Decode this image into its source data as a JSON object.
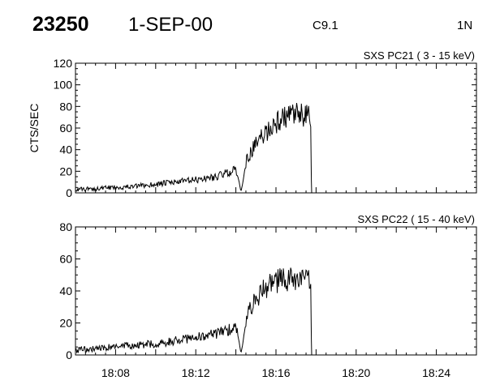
{
  "header": {
    "event_number": "23250",
    "date": "1-SEP-00",
    "flare_class": "C9.1",
    "position": "1N"
  },
  "colors": {
    "background": "#ffffff",
    "foreground": "#000000"
  },
  "chart_data": [
    {
      "type": "line",
      "title": "SXS PC21  (  3 - 15 keV)",
      "ylabel": "CTS/SEC",
      "xlabel": "",
      "xlim": [
        "18:06:00",
        "18:26:00"
      ],
      "ylim": [
        0,
        120
      ],
      "yticks": [
        "0",
        "20",
        "40",
        "60",
        "80",
        "100",
        "120"
      ],
      "xticks": [
        "18:08",
        "18:12",
        "18:16",
        "18:20",
        "18:24"
      ],
      "grid": false,
      "series": [
        {
          "x": [
            "18:06:00",
            "18:07:00",
            "18:08:00",
            "18:09:00",
            "18:10:00",
            "18:11:00",
            "18:12:00",
            "18:13:00",
            "18:13:30",
            "18:14:00",
            "18:14:10",
            "18:14:15",
            "18:14:20",
            "18:14:30",
            "18:14:45",
            "18:15:00",
            "18:15:30",
            "18:16:00",
            "18:16:30",
            "18:17:00",
            "18:17:30",
            "18:17:45",
            "18:17:46",
            "18:17:47"
          ],
          "y": [
            3,
            4,
            5,
            6,
            8,
            10,
            12,
            15,
            18,
            22,
            10,
            1,
            8,
            28,
            38,
            45,
            56,
            65,
            70,
            72,
            71,
            70,
            12,
            0
          ]
        }
      ]
    },
    {
      "type": "line",
      "title": "SXS PC22  ( 15 - 40 keV)",
      "ylabel": "",
      "xlabel": "",
      "xlim": [
        "18:06:00",
        "18:26:00"
      ],
      "ylim": [
        0,
        80
      ],
      "yticks": [
        "0",
        "20",
        "40",
        "60",
        "80"
      ],
      "xticks": [
        "18:08",
        "18:12",
        "18:16",
        "18:20",
        "18:24"
      ],
      "grid": false,
      "series": [
        {
          "x": [
            "18:06:00",
            "18:07:00",
            "18:08:00",
            "18:09:00",
            "18:10:00",
            "18:11:00",
            "18:12:00",
            "18:13:00",
            "18:13:30",
            "18:14:00",
            "18:14:10",
            "18:14:15",
            "18:14:20",
            "18:14:30",
            "18:14:45",
            "18:15:00",
            "18:15:30",
            "18:16:00",
            "18:16:30",
            "18:17:00",
            "18:17:30",
            "18:17:45",
            "18:17:46",
            "18:17:47"
          ],
          "y": [
            3,
            4,
            5,
            6,
            7,
            9,
            11,
            13,
            15,
            18,
            8,
            1,
            6,
            22,
            30,
            36,
            42,
            46,
            47,
            47,
            46,
            45,
            10,
            0
          ]
        }
      ]
    }
  ]
}
